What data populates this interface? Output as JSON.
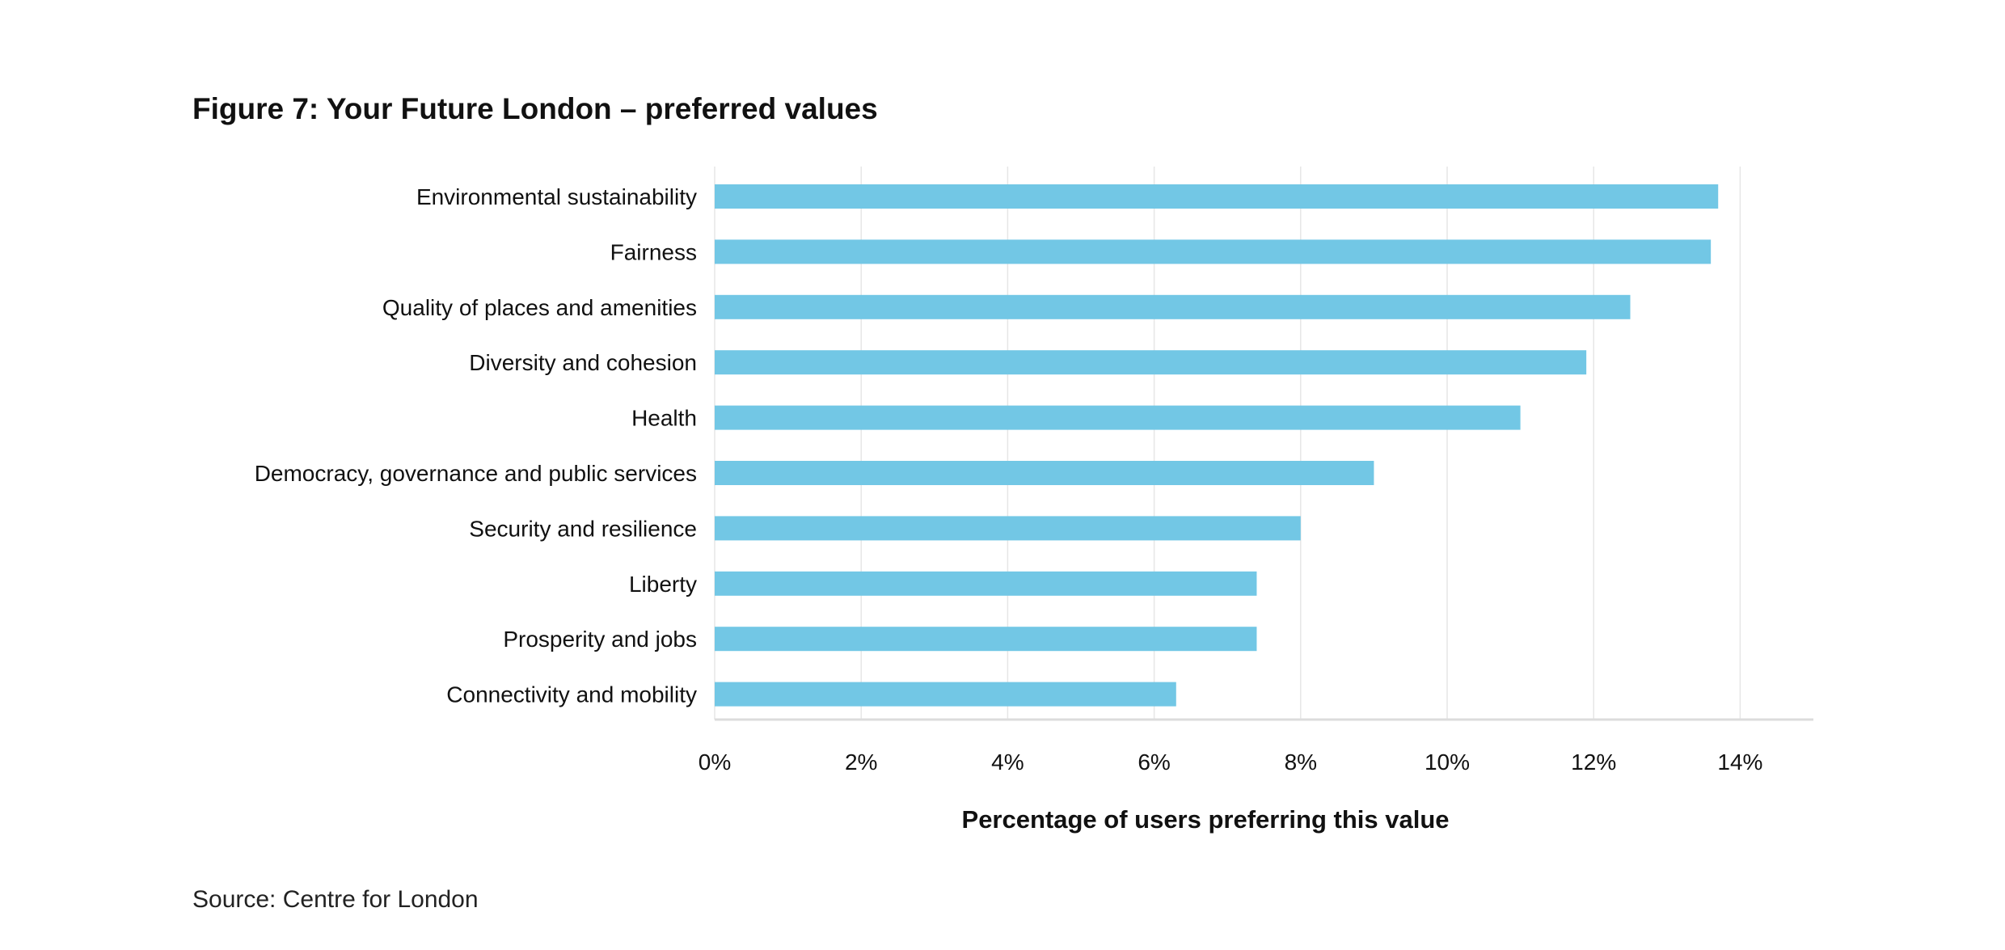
{
  "chart_data": {
    "type": "bar",
    "orientation": "horizontal",
    "title": "Figure 7: Your Future London – preferred values",
    "xlabel": "Percentage of users preferring this value",
    "ylabel": "",
    "categories": [
      "Environmental sustainability",
      "Fairness",
      "Quality of places and amenities",
      "Diversity and cohesion",
      "Health",
      "Democracy, governance and public services",
      "Security and resilience",
      "Liberty",
      "Prosperity and jobs",
      "Connectivity and mobility"
    ],
    "values": [
      13.7,
      13.6,
      12.5,
      11.9,
      11.0,
      9.0,
      8.0,
      7.4,
      7.4,
      6.3
    ],
    "xlim": [
      0,
      15
    ],
    "xticks": [
      0,
      2,
      4,
      6,
      8,
      10,
      12,
      14
    ],
    "xtick_labels": [
      "0%",
      "2%",
      "4%",
      "6%",
      "8%",
      "10%",
      "12%",
      "14%"
    ],
    "grid": true,
    "bar_color": "#72c7e5",
    "source": "Source: Centre for London"
  }
}
